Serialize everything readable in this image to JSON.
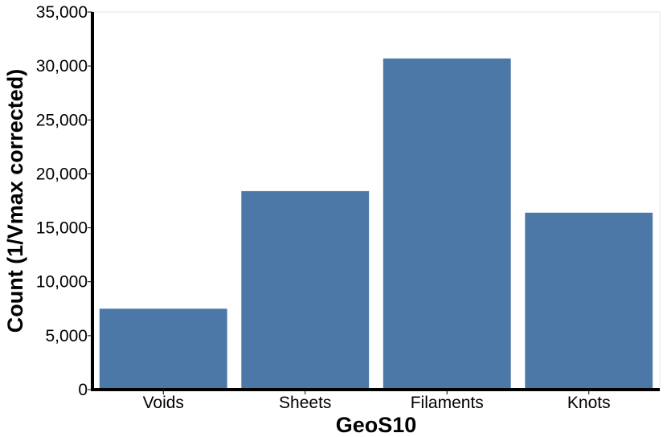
{
  "chart_data": {
    "type": "bar",
    "title": "",
    "xlabel": "GeoS10",
    "ylabel": "Count (1/Vmax corrected)",
    "categories": [
      "Voids",
      "Sheets",
      "Filaments",
      "Knots"
    ],
    "values": [
      7500,
      18400,
      30700,
      16400
    ],
    "ylim": [
      0,
      35000
    ],
    "yticks": [
      0,
      5000,
      10000,
      15000,
      20000,
      25000,
      30000,
      35000
    ],
    "ytick_labels": [
      "0",
      "5,000",
      "10,000",
      "15,000",
      "20,000",
      "25,000",
      "30,000",
      "35,000"
    ],
    "bar_color": "#4c78a8",
    "grid": false,
    "legend": "none"
  }
}
